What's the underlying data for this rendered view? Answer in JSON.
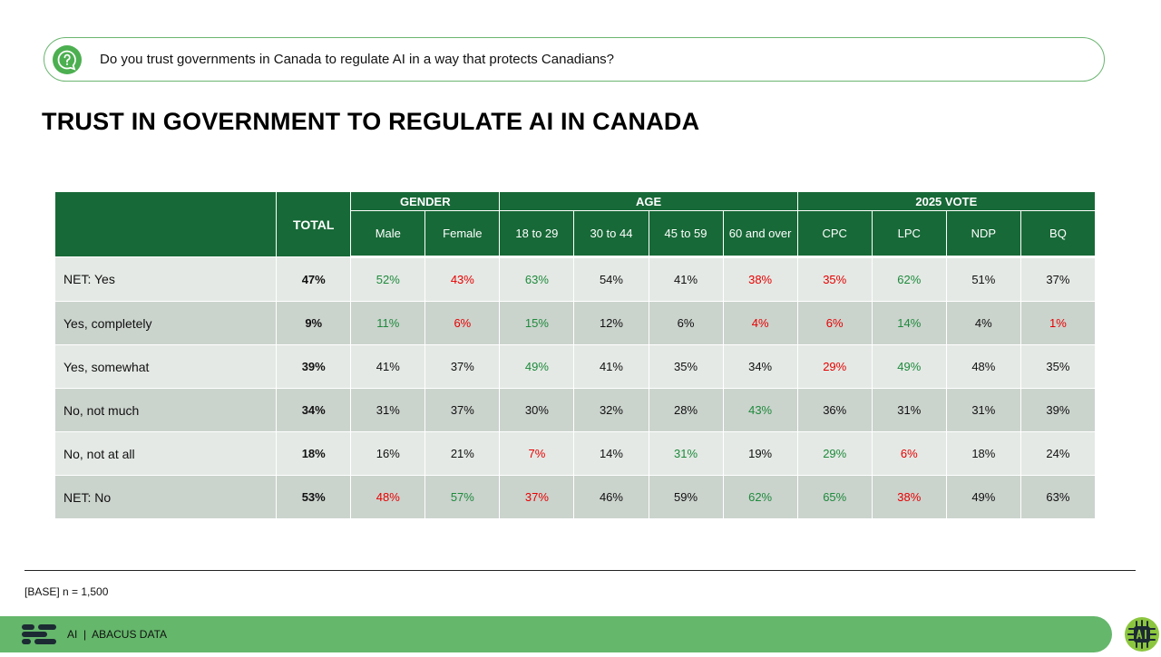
{
  "question": {
    "icon": "question-chat-icon",
    "text": "Do you trust governments in Canada to regulate AI in a way that protects Canadians?"
  },
  "title": "TRUST IN GOVERNMENT TO REGULATE AI IN CANADA",
  "table": {
    "total_header": "TOTAL",
    "groups": [
      {
        "label": "GENDER",
        "columns": [
          "Male",
          "Female"
        ]
      },
      {
        "label": "AGE",
        "columns": [
          "18 to 29",
          "30 to 44",
          "45 to 59",
          "60 and over"
        ]
      },
      {
        "label": "2025 VOTE",
        "columns": [
          "CPC",
          "LPC",
          "NDP",
          "BQ"
        ]
      }
    ],
    "rows": [
      {
        "label": "NET: Yes",
        "total": "47%",
        "values": [
          "52%",
          "43%",
          "63%",
          "54%",
          "41%",
          "38%",
          "35%",
          "62%",
          "51%",
          "37%"
        ],
        "flags": [
          "pos",
          "neg",
          "pos",
          "",
          "",
          "neg",
          "neg",
          "pos",
          "",
          ""
        ]
      },
      {
        "label": "Yes, completely",
        "total": "9%",
        "values": [
          "11%",
          "6%",
          "15%",
          "12%",
          "6%",
          "4%",
          "6%",
          "14%",
          "4%",
          "1%"
        ],
        "flags": [
          "pos",
          "neg",
          "pos",
          "",
          "",
          "neg",
          "neg",
          "pos",
          "",
          "neg"
        ]
      },
      {
        "label": "Yes, somewhat",
        "total": "39%",
        "values": [
          "41%",
          "37%",
          "49%",
          "41%",
          "35%",
          "34%",
          "29%",
          "49%",
          "48%",
          "35%"
        ],
        "flags": [
          "",
          "",
          "pos",
          "",
          "",
          "",
          "neg",
          "pos",
          "",
          ""
        ]
      },
      {
        "label": "No, not much",
        "total": "34%",
        "values": [
          "31%",
          "37%",
          "30%",
          "32%",
          "28%",
          "43%",
          "36%",
          "31%",
          "31%",
          "39%"
        ],
        "flags": [
          "",
          "",
          "",
          "",
          "",
          "pos",
          "",
          "",
          "",
          ""
        ]
      },
      {
        "label": "No, not at all",
        "total": "18%",
        "values": [
          "16%",
          "21%",
          "7%",
          "14%",
          "31%",
          "19%",
          "29%",
          "6%",
          "18%",
          "24%"
        ],
        "flags": [
          "",
          "",
          "neg",
          "",
          "pos",
          "",
          "pos",
          "neg",
          "",
          ""
        ]
      },
      {
        "label": "NET: No",
        "total": "53%",
        "values": [
          "48%",
          "57%",
          "37%",
          "46%",
          "59%",
          "62%",
          "65%",
          "38%",
          "49%",
          "63%"
        ],
        "flags": [
          "neg",
          "pos",
          "neg",
          "",
          "",
          "pos",
          "pos",
          "neg",
          "",
          ""
        ]
      }
    ]
  },
  "colors": {
    "header_green": "#176937",
    "positive": "#1e8a3c",
    "negative": "#e60000",
    "row_light": "#e4e9e5",
    "row_dark": "#cbd3cd",
    "footer_green": "#65b76b"
  },
  "base_note": "[BASE] n = 1,500",
  "footer": {
    "logo": "abacus-logo-icon",
    "text": "AI  |  ABACUS DATA",
    "badge": "ai-chip-badge-icon"
  }
}
